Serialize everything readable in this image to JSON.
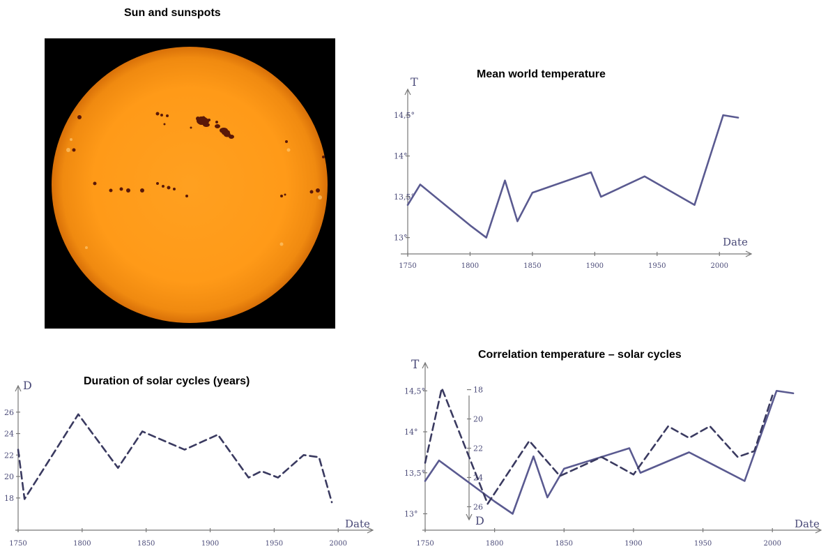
{
  "sun_panel": {
    "title": "Sun and sunspots"
  },
  "chart_data": [
    {
      "id": "temperature",
      "type": "line",
      "title": "Mean world temperature",
      "ylabel": "T",
      "xlabel": "Date",
      "xlim": [
        1750,
        2020
      ],
      "ylim": [
        12.8,
        14.8
      ],
      "x_ticks": [
        "1750",
        "1800",
        "1850",
        "1900",
        "1950",
        "2000"
      ],
      "y_ticks": [
        "13°",
        "13,5°",
        "14°",
        "14,5°"
      ],
      "series": [
        {
          "color": "#5a5a90",
          "style": "solid",
          "x": [
            1750,
            1760,
            1800,
            1813,
            1828,
            1838,
            1850,
            1897,
            1905,
            1940,
            1980,
            2003,
            2015
          ],
          "y": [
            13.4,
            13.65,
            13.15,
            13.0,
            13.7,
            13.2,
            13.55,
            13.8,
            13.5,
            13.75,
            13.4,
            14.5,
            14.47
          ]
        }
      ]
    },
    {
      "id": "duration",
      "type": "line",
      "title": "Duration of solar cycles (years)",
      "ylabel": "D",
      "xlabel": "Date",
      "xlim": [
        1750,
        2020
      ],
      "ylim": [
        15,
        28
      ],
      "x_ticks": [
        "1750",
        "1800",
        "1850",
        "1900",
        "1950",
        "2000"
      ],
      "y_ticks": [
        "18",
        "20",
        "22",
        "24",
        "26"
      ],
      "series": [
        {
          "color": "#3a3a60",
          "style": "dashed",
          "x": [
            1750,
            1755,
            1797,
            1828,
            1847,
            1880,
            1906,
            1930,
            1940,
            1953,
            1973,
            1985,
            1995
          ],
          "y": [
            22.5,
            17.9,
            25.8,
            20.8,
            24.2,
            22.5,
            23.9,
            19.9,
            20.5,
            19.9,
            22.0,
            21.8,
            17.6
          ]
        }
      ]
    },
    {
      "id": "correlation",
      "type": "line",
      "title": "Correlation  temperature –  solar cycles",
      "ylabel": "T",
      "y2label": "D",
      "xlabel": "Date",
      "xlim": [
        1750,
        2030
      ],
      "ylim": [
        12.8,
        14.8
      ],
      "y2lim": [
        16.4,
        27.6
      ],
      "x_ticks": [
        "1750",
        "1800",
        "1850",
        "1900",
        "1950",
        "2000"
      ],
      "y_ticks": [
        "13°",
        "13,5°",
        "14°",
        "14,5°"
      ],
      "y2_ticks": [
        "18",
        "20",
        "22",
        "24",
        "26"
      ],
      "series": [
        {
          "color": "#5a5a90",
          "style": "solid",
          "axis": "left",
          "x": [
            1750,
            1760,
            1800,
            1813,
            1828,
            1838,
            1850,
            1897,
            1905,
            1940,
            1980,
            2003,
            2015
          ],
          "y": [
            13.4,
            13.65,
            13.15,
            13.0,
            13.7,
            13.2,
            13.55,
            13.8,
            13.5,
            13.75,
            13.4,
            14.5,
            14.47
          ]
        },
        {
          "color": "#3a3a60",
          "style": "dashed",
          "axis": "right",
          "x": [
            1750,
            1762,
            1795,
            1825,
            1847,
            1877,
            1900,
            1925,
            1940,
            1955,
            1975,
            1987,
            2000
          ],
          "y": [
            23.0,
            17.9,
            25.8,
            21.5,
            23.9,
            22.6,
            23.8,
            20.5,
            21.3,
            20.5,
            22.6,
            22.2,
            18.4
          ]
        }
      ]
    }
  ]
}
